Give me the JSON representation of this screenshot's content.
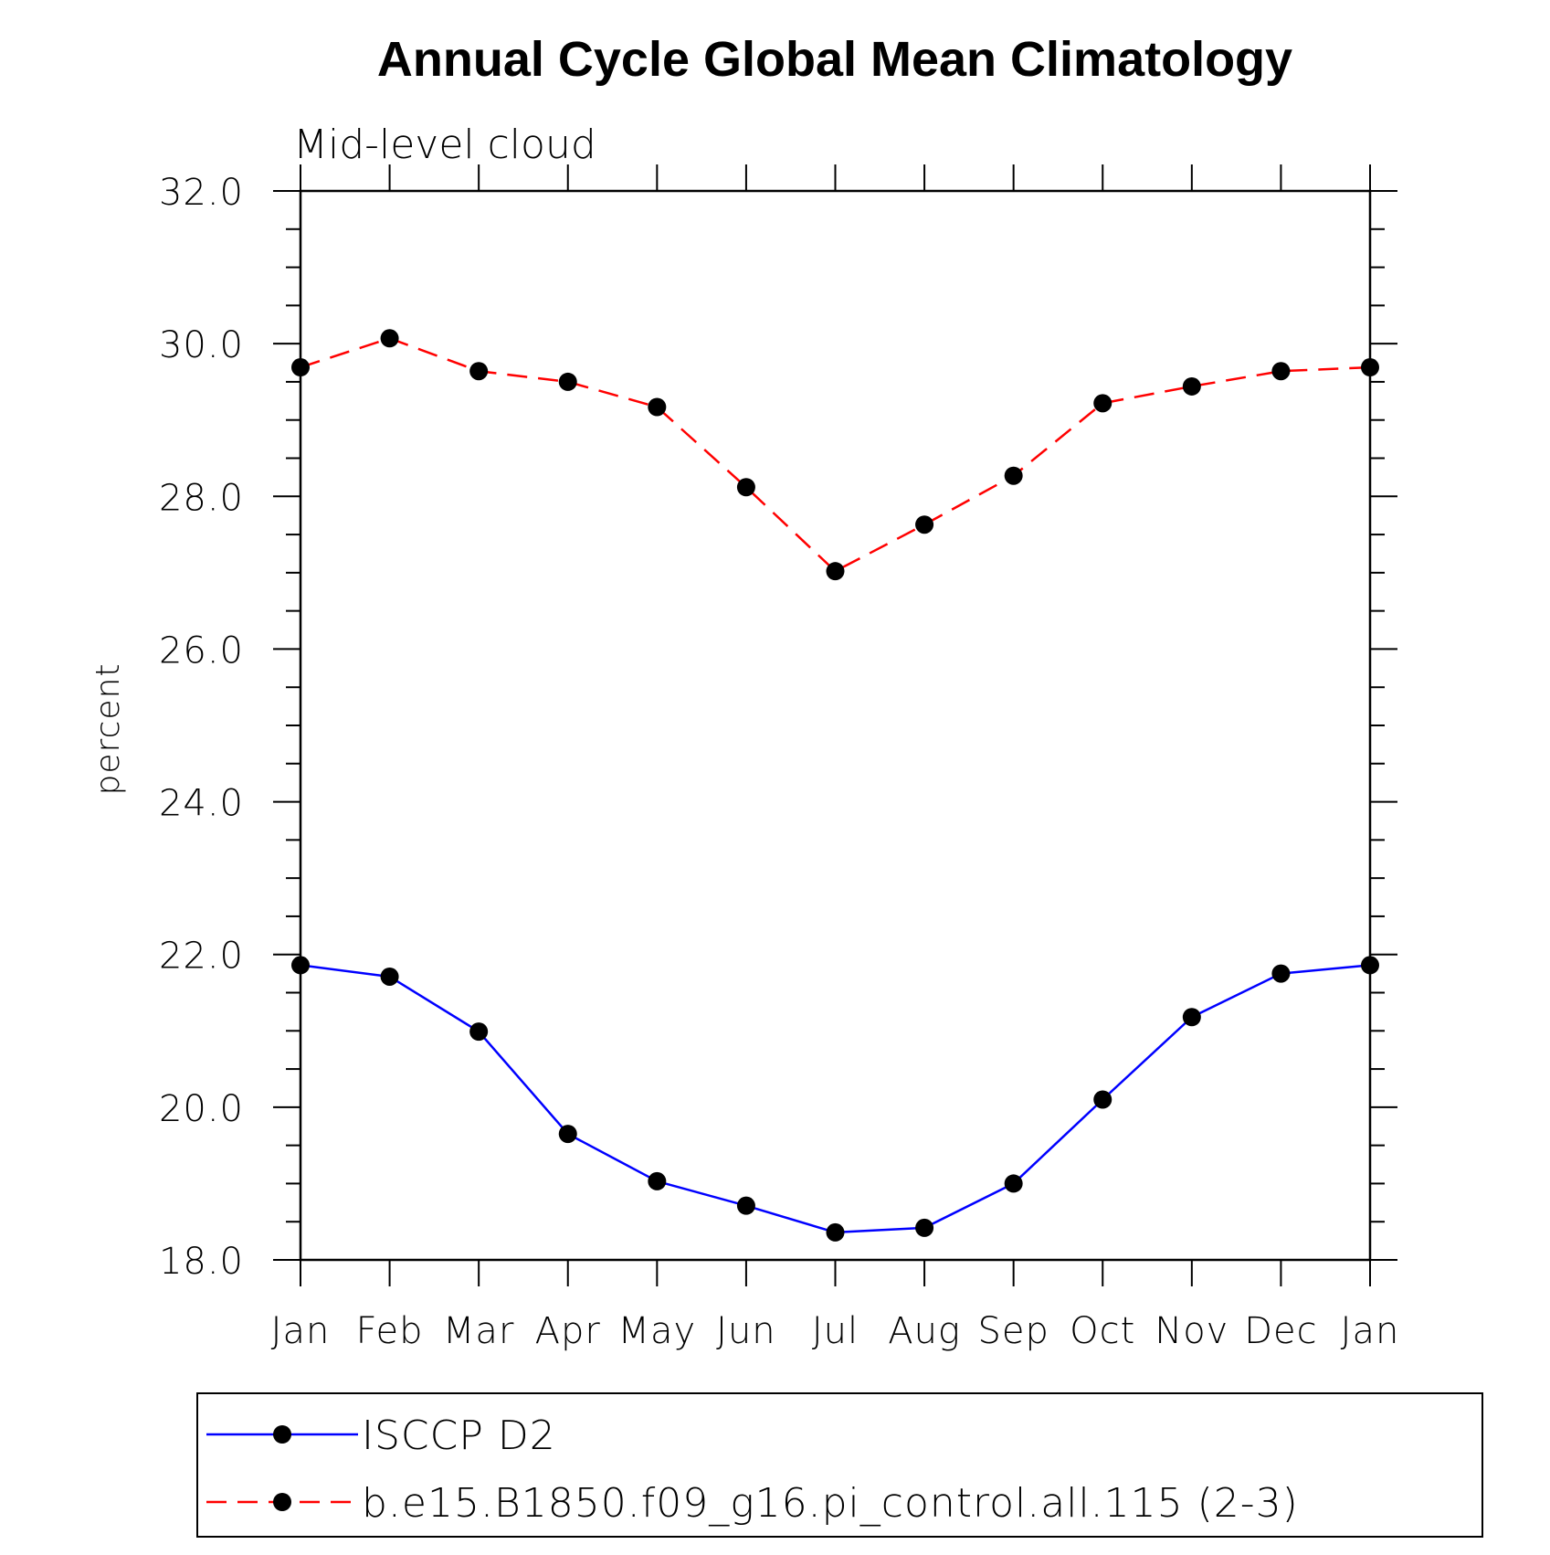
{
  "chart_data": {
    "type": "line",
    "title": "Annual Cycle Global Mean Climatology",
    "subtitle": "Mid-level cloud",
    "ylabel": "percent",
    "xlabel": "",
    "ylim": [
      18.0,
      32.0
    ],
    "y_major_ticks": [
      "18.0",
      "20.0",
      "22.0",
      "24.0",
      "26.0",
      "28.0",
      "30.0",
      "32.0"
    ],
    "y_minor_step": 0.5,
    "grid": false,
    "legend_position": "bottom",
    "categories": [
      "Jan",
      "Feb",
      "Mar",
      "Apr",
      "May",
      "Jun",
      "Jul",
      "Aug",
      "Sep",
      "Oct",
      "Nov",
      "Dec",
      "Jan"
    ],
    "series": [
      {
        "name": "ISCCP D2",
        "color": "#0000ff",
        "line_style": "solid",
        "marker": "filled-circle",
        "values": [
          21.86,
          21.71,
          20.99,
          19.65,
          19.03,
          18.71,
          18.36,
          18.42,
          19.0,
          20.1,
          21.18,
          21.75,
          21.86
        ]
      },
      {
        "name": "b.e15.B1850.f09_g16.pi_control.all.115 (2-3)",
        "color": "#ff0000",
        "line_style": "dashed",
        "marker": "filled-circle",
        "values": [
          29.69,
          30.07,
          29.64,
          29.5,
          29.17,
          28.12,
          27.02,
          27.63,
          28.27,
          29.22,
          29.44,
          29.64,
          29.69
        ]
      }
    ]
  }
}
